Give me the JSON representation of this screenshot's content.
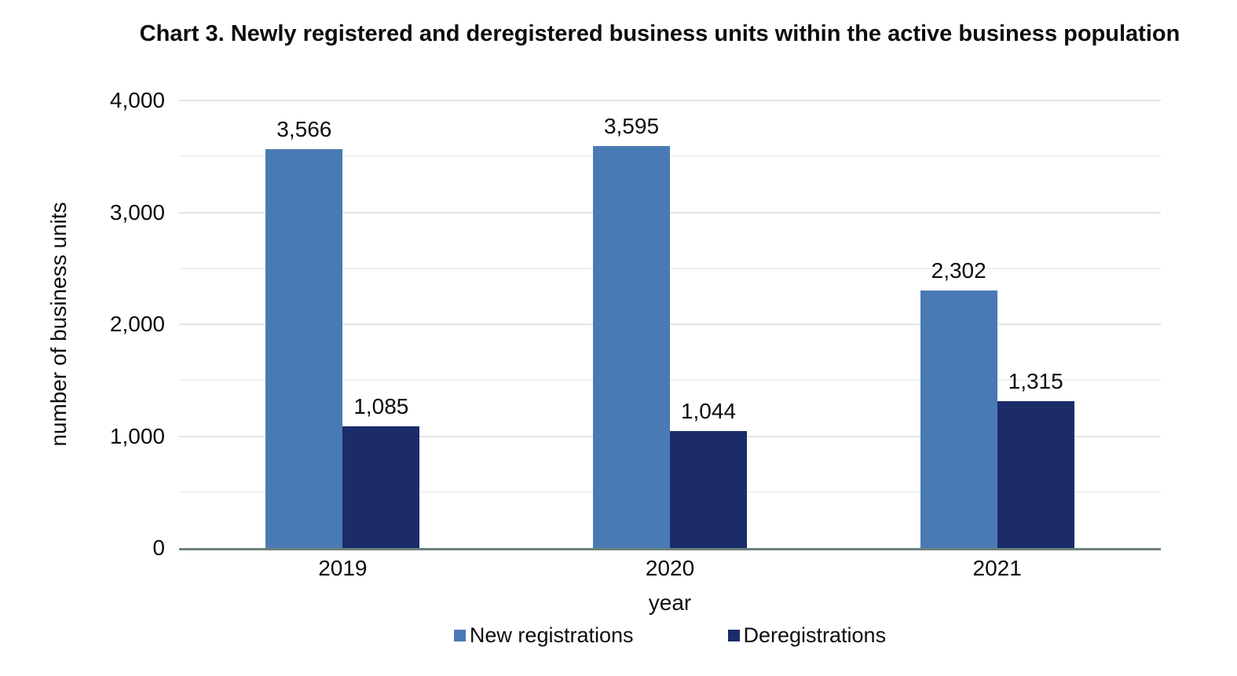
{
  "chart_data": {
    "type": "bar",
    "title": "Chart 3. Newly registered and deregistered business units within the active business population",
    "categories": [
      "2019",
      "2020",
      "2021"
    ],
    "series": [
      {
        "name": "New registrations",
        "color": "#4A7AB5",
        "values": [
          3566,
          3595,
          2302
        ]
      },
      {
        "name": "Deregistrations",
        "color": "#1B2C69",
        "values": [
          1085,
          1044,
          1315
        ]
      }
    ],
    "value_labels": [
      "3,566",
      "1,085",
      "3,595",
      "1,044",
      "2,302",
      "1,315"
    ],
    "xlabel": "year",
    "ylabel": "number of business units",
    "ylim": [
      0,
      4000
    ],
    "yticks": [
      0,
      1000,
      2000,
      3000,
      4000
    ],
    "ytick_labels": [
      "0",
      "1,000",
      "2,000",
      "3,000",
      "4,000"
    ],
    "grid": {
      "visible": true,
      "minor_interval": 500,
      "major_interval": 1000
    },
    "legend_position": "bottom"
  },
  "colors": {
    "background": "#ffffff",
    "axis_line": "#6e807d",
    "grid_major": "#e1e6e6",
    "grid_minor": "#eef1f1",
    "text": "#0d0d0d"
  }
}
